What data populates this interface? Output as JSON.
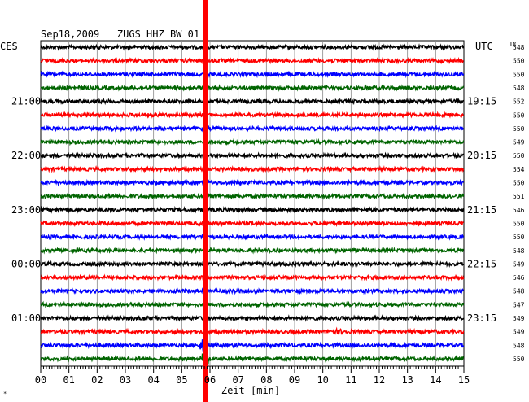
{
  "chart_data": {
    "type": "line",
    "title": "Sep18,2009   ZUGS HHZ BW 01",
    "left_label": "CES",
    "right_label": "UTC",
    "dc_header": "DC",
    "xlabel": "Zeit [min]",
    "xlim": [
      0,
      15
    ],
    "x_ticks": [
      "00",
      "01",
      "02",
      "03",
      "04",
      "05",
      "06",
      "07",
      "08",
      "09",
      "10",
      "11",
      "12",
      "13",
      "14",
      "15"
    ],
    "left_hour_labels": [
      "21:00",
      "22:00",
      "23:00",
      "00:00",
      "01:00"
    ],
    "right_hour_labels": [
      "19:15",
      "20:15",
      "21:15",
      "22:15",
      "23:15"
    ],
    "trace_colors": [
      "#000000",
      "#ff0000",
      "#0000ff",
      "#006400"
    ],
    "dc_values": [
      "548",
      "550",
      "550",
      "548",
      "552",
      "550",
      "550",
      "549",
      "550",
      "554",
      "550",
      "551",
      "546",
      "550",
      "550",
      "548",
      "549",
      "546",
      "548",
      "547",
      "549",
      "549",
      "548",
      "550"
    ],
    "event": {
      "time_min": 5.8,
      "color": "#ff0000",
      "large_trace_indices": [
        22,
        23
      ]
    },
    "corner_mark": "*"
  }
}
